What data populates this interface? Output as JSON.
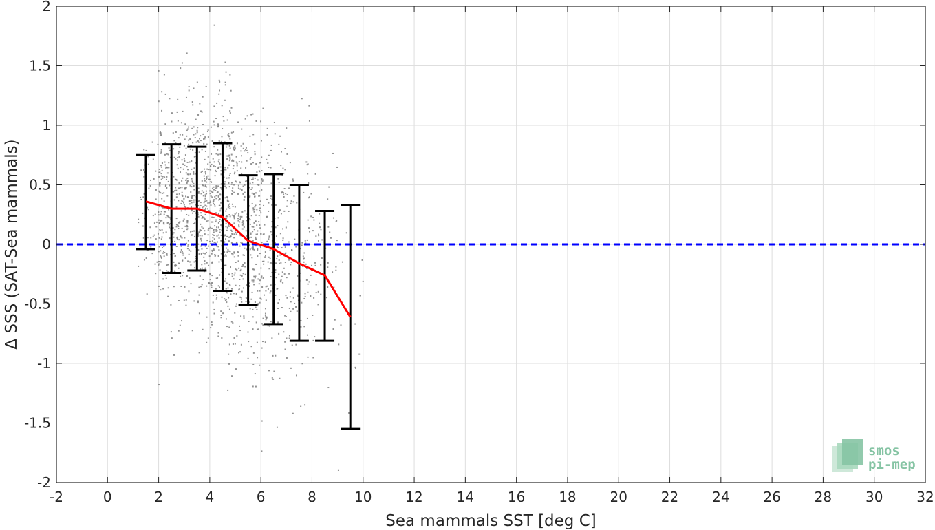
{
  "chart_data": {
    "type": "scatter",
    "title": "",
    "xlabel": "Sea mammals SST [deg C]",
    "ylabel": "Δ SSS (SAT-Sea mammals)",
    "xlim": [
      -2,
      32
    ],
    "ylim": [
      -2,
      2
    ],
    "xticks": [
      "-2",
      "0",
      "2",
      "4",
      "6",
      "8",
      "10",
      "12",
      "14",
      "16",
      "18",
      "20",
      "22",
      "24",
      "26",
      "28",
      "30",
      "32"
    ],
    "yticks": [
      "-2",
      "-1.5",
      "-1",
      "-0.5",
      "0",
      "0.5",
      "1",
      "1.5",
      "2"
    ],
    "grid": true,
    "series": [
      {
        "kind": "binned-mean",
        "color": "#ff0000",
        "x": [
          1.5,
          2.5,
          3.5,
          4.5,
          5.5,
          6.5,
          7.5,
          8.5,
          9.5
        ],
        "values": [
          0.36,
          0.3,
          0.3,
          0.23,
          0.03,
          -0.04,
          -0.16,
          -0.26,
          -0.61
        ]
      },
      {
        "kind": "error-bars",
        "color": "#000000",
        "x": [
          1.5,
          2.5,
          3.5,
          4.5,
          5.5,
          6.5,
          7.5,
          8.5,
          9.5
        ],
        "upper": [
          0.75,
          0.84,
          0.82,
          0.85,
          0.58,
          0.59,
          0.5,
          0.28,
          0.33
        ],
        "lower": [
          -0.04,
          -0.24,
          -0.22,
          -0.39,
          -0.51,
          -0.67,
          -0.81,
          -0.81,
          -1.55
        ]
      },
      {
        "kind": "reference-line",
        "color": "#0000ff",
        "style": "dashed",
        "y": 0
      },
      {
        "kind": "scatter-cloud",
        "color": "#808080",
        "bins": [
          {
            "x": [
              1.2,
              2.2
            ],
            "center": 0.3,
            "spread": 0.35,
            "count": 90
          },
          {
            "x": [
              2.0,
              3.0
            ],
            "center": 0.3,
            "spread": 0.5,
            "count": 260
          },
          {
            "x": [
              3.0,
              4.0
            ],
            "center": 0.3,
            "spread": 0.5,
            "count": 340
          },
          {
            "x": [
              4.0,
              5.0
            ],
            "center": 0.23,
            "spread": 0.6,
            "count": 420
          },
          {
            "x": [
              5.0,
              6.0
            ],
            "center": 0.03,
            "spread": 0.55,
            "count": 300
          },
          {
            "x": [
              6.0,
              7.0
            ],
            "center": -0.04,
            "spread": 0.6,
            "count": 200
          },
          {
            "x": [
              7.0,
              8.0
            ],
            "center": -0.16,
            "spread": 0.6,
            "count": 110
          },
          {
            "x": [
              8.0,
              9.0
            ],
            "center": -0.26,
            "spread": 0.55,
            "count": 55
          },
          {
            "x": [
              9.0,
              10.0
            ],
            "center": -0.61,
            "spread": 0.7,
            "count": 14
          }
        ]
      }
    ]
  },
  "logo": {
    "line1": "smos",
    "line2": "pi-mep",
    "color": "#86c4a4"
  }
}
